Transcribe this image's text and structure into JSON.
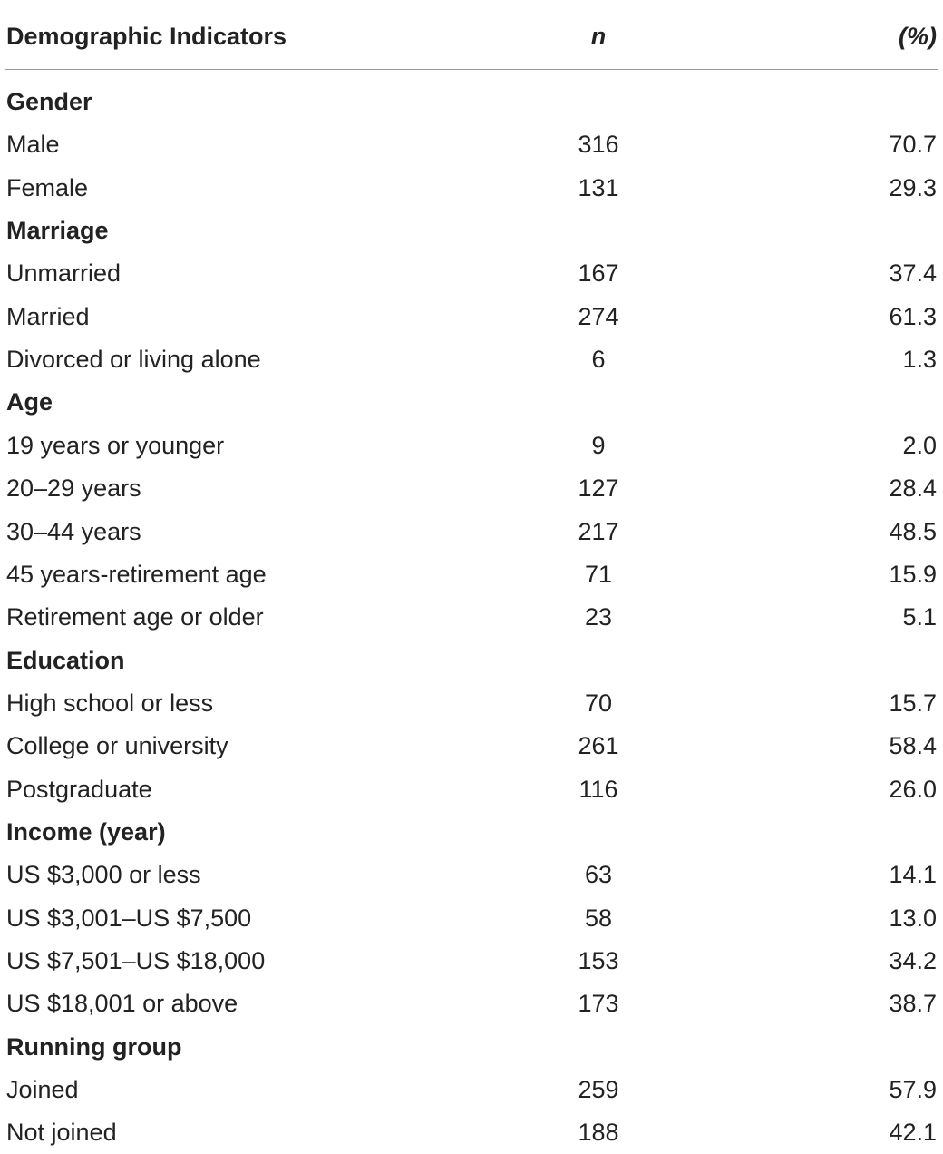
{
  "header": {
    "label": "Demographic Indicators",
    "n": "n",
    "pct": "(%)"
  },
  "sections": [
    {
      "title": "Gender",
      "rows": [
        {
          "label": "Male",
          "n": "316",
          "pct": "70.7"
        },
        {
          "label": "Female",
          "n": "131",
          "pct": "29.3"
        }
      ]
    },
    {
      "title": "Marriage",
      "rows": [
        {
          "label": "Unmarried",
          "n": "167",
          "pct": "37.4"
        },
        {
          "label": "Married",
          "n": "274",
          "pct": "61.3"
        },
        {
          "label": "Divorced or living alone",
          "n": "6",
          "pct": "1.3"
        }
      ]
    },
    {
      "title": "Age",
      "rows": [
        {
          "label": "19 years or younger",
          "n": "9",
          "pct": "2.0"
        },
        {
          "label": "20–29 years",
          "n": "127",
          "pct": "28.4"
        },
        {
          "label": "30–44 years",
          "n": "217",
          "pct": "48.5"
        },
        {
          "label": "45 years-retirement age",
          "n": "71",
          "pct": "15.9"
        },
        {
          "label": "Retirement age or older",
          "n": "23",
          "pct": "5.1"
        }
      ]
    },
    {
      "title": "Education",
      "rows": [
        {
          "label": "High school or less",
          "n": "70",
          "pct": "15.7"
        },
        {
          "label": "College or university",
          "n": "261",
          "pct": "58.4"
        },
        {
          "label": "Postgraduate",
          "n": "116",
          "pct": "26.0"
        }
      ]
    },
    {
      "title": "Income (year)",
      "rows": [
        {
          "label": "US $3,000 or less",
          "n": "63",
          "pct": "14.1"
        },
        {
          "label": "US $3,001–US $7,500",
          "n": "58",
          "pct": "13.0"
        },
        {
          "label": "US $7,501–US $18,000",
          "n": "153",
          "pct": "34.2"
        },
        {
          "label": "US $18,001 or above",
          "n": "173",
          "pct": "38.7"
        }
      ]
    },
    {
      "title": "Running group",
      "rows": [
        {
          "label": "Joined",
          "n": "259",
          "pct": "57.9"
        },
        {
          "label": "Not joined",
          "n": "188",
          "pct": "42.1"
        }
      ]
    }
  ]
}
